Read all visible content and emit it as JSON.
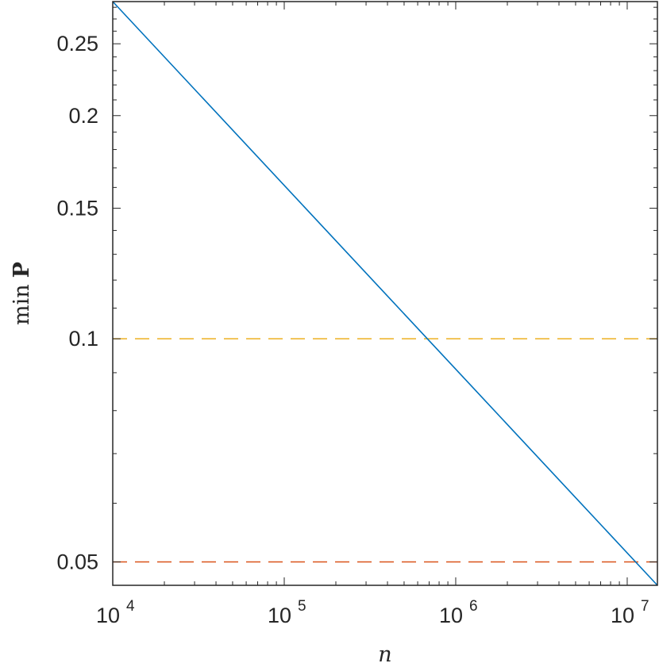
{
  "chart_data": {
    "type": "line",
    "xscale": "log",
    "yscale": "log",
    "xlim": [
      10000,
      15000000
    ],
    "ylim": [
      0.0465,
      0.285
    ],
    "xlabel": "n",
    "ylabel_prefix": "min",
    "ylabel_symbol": "P",
    "grid": false,
    "x_ticks": [
      {
        "value": 10000,
        "base": "10",
        "exp": "4"
      },
      {
        "value": 100000,
        "base": "10",
        "exp": "5"
      },
      {
        "value": 1000000,
        "base": "10",
        "exp": "6"
      },
      {
        "value": 10000000,
        "base": "10",
        "exp": "7"
      }
    ],
    "y_ticks": [
      {
        "value": 0.05,
        "label": "0.05"
      },
      {
        "value": 0.1,
        "label": "0.1"
      },
      {
        "value": 0.15,
        "label": "0.15"
      },
      {
        "value": 0.2,
        "label": "0.2"
      },
      {
        "value": 0.25,
        "label": "0.25"
      }
    ],
    "y_minor_ticks": [
      0.06,
      0.07,
      0.08,
      0.09
    ],
    "series": [
      {
        "color": "#0072BD",
        "style": "solid",
        "x": [
          10000,
          15000000
        ],
        "y": [
          0.285,
          0.0465
        ]
      }
    ],
    "reference_lines": [
      {
        "y": 0.1,
        "color": "#EDB120",
        "style": "dashed"
      },
      {
        "y": 0.05,
        "color": "#D95319",
        "style": "dashed"
      }
    ]
  }
}
